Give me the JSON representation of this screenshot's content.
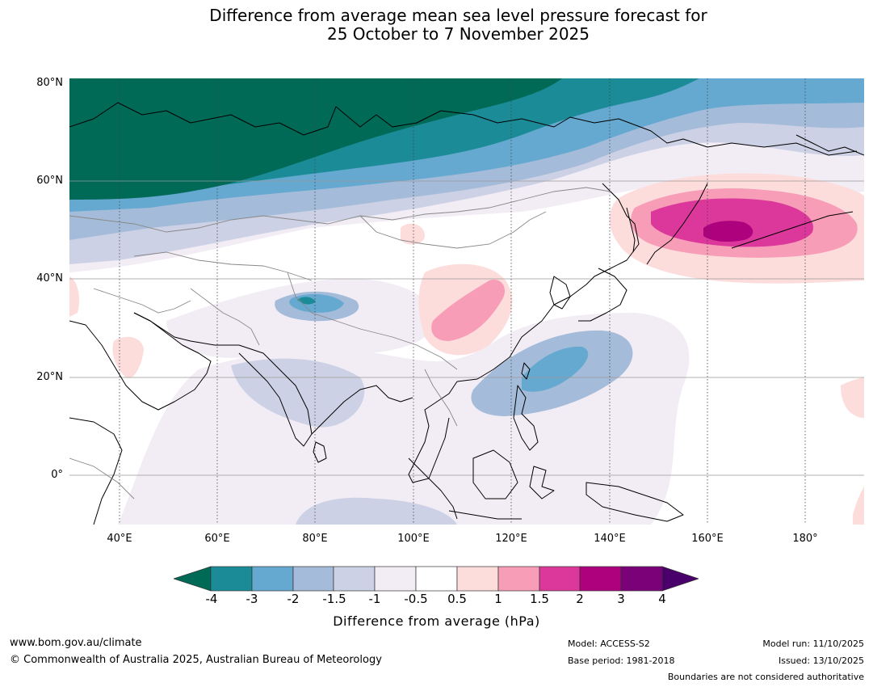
{
  "title": {
    "line1": "Difference from average mean sea level pressure forecast for",
    "line2": "25 October to 7 November 2025"
  },
  "map": {
    "lat_labels": [
      "80°N",
      "60°N",
      "40°N",
      "20°N",
      "0°"
    ],
    "lon_labels": [
      "40°E",
      "60°E",
      "80°E",
      "100°E",
      "120°E",
      "140°E",
      "160°E",
      "180°"
    ],
    "extent": {
      "lon_min": 30,
      "lon_max": 192,
      "lat_min": -10,
      "lat_max": 80
    },
    "colors": {
      "land_outline": "#000000",
      "border_outline": "#888888",
      "grid": "#999999"
    },
    "anomaly_regions": [
      {
        "name": "Arctic Russia low",
        "level": "-4",
        "center_lon": 55,
        "center_lat": 72
      },
      {
        "name": "Tibet low",
        "level": "-4",
        "center_lon": 76,
        "center_lat": 35
      },
      {
        "name": "Philippine Sea low",
        "level": "-2",
        "center_lon": 130,
        "center_lat": 22
      },
      {
        "name": "Northern China high",
        "level": "1",
        "center_lon": 114,
        "center_lat": 32
      },
      {
        "name": "North Pacific high",
        "level": "2",
        "center_lon": 165,
        "center_lat": 49
      }
    ]
  },
  "colorbar": {
    "ticks": [
      "-4",
      "-3",
      "-2",
      "-1.5",
      "-1",
      "-0.5",
      "0.5",
      "1",
      "1.5",
      "2",
      "3",
      "4"
    ],
    "colors": [
      "#006a57",
      "#1b8c97",
      "#66a9d0",
      "#a4bcd9",
      "#cdd1e5",
      "#f2edf5",
      "#ffffff",
      "#fddcdc",
      "#f79db8",
      "#dc379a",
      "#ad017d",
      "#7a0177",
      "#4a006a"
    ],
    "label": "Difference from average (hPa)"
  },
  "footer": {
    "website": "www.bom.gov.au/climate",
    "copyright": "© Commonwealth of Australia 2025, Australian Bureau of Meteorology",
    "model": "Model: ACCESS-S2",
    "base_period": "Base period: 1981-2018",
    "model_run": "Model run: 11/10/2025",
    "issued": "Issued: 13/10/2025",
    "disclaimer": "Boundaries are not considered authoritative"
  }
}
